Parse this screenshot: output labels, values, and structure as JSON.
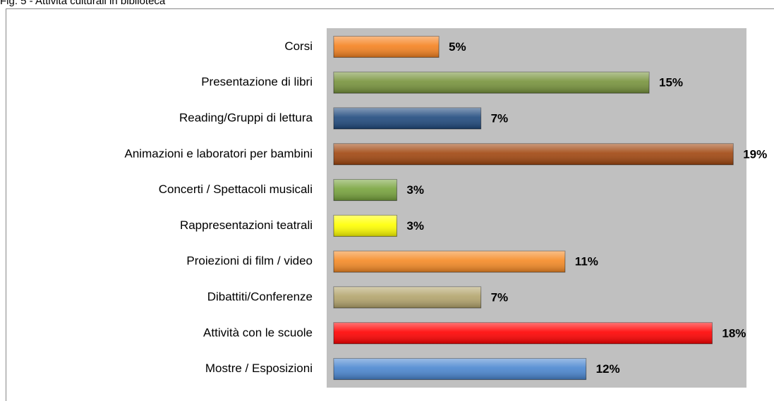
{
  "chart_data": {
    "type": "hbar",
    "title": "Fig. 5 - Attività culturali in biblioteca",
    "categories": [
      "Corsi",
      "Presentazione di libri",
      "Reading/Gruppi di lettura",
      "Animazioni e laboratori per bambini",
      "Concerti / Spettacoli musicali",
      "Rappresentazioni teatrali",
      "Proiezioni di film / video",
      "Dibattiti/Conferenze",
      "Attività con le scuole",
      "Mostre / Esposizioni"
    ],
    "values": [
      5,
      15,
      7,
      19,
      3,
      3,
      11,
      7,
      18,
      12
    ],
    "value_labels": [
      "5%",
      "15%",
      "7%",
      "19%",
      "3%",
      "3%",
      "11%",
      "7%",
      "18%",
      "12%"
    ],
    "colors": [
      "#f58220",
      "#77933c",
      "#1f497d",
      "#a0460f",
      "#77a33c",
      "#ffff00",
      "#f58a25",
      "#b3a46c",
      "#ff0000",
      "#4a86d0"
    ],
    "xlim": [
      0,
      20
    ]
  }
}
